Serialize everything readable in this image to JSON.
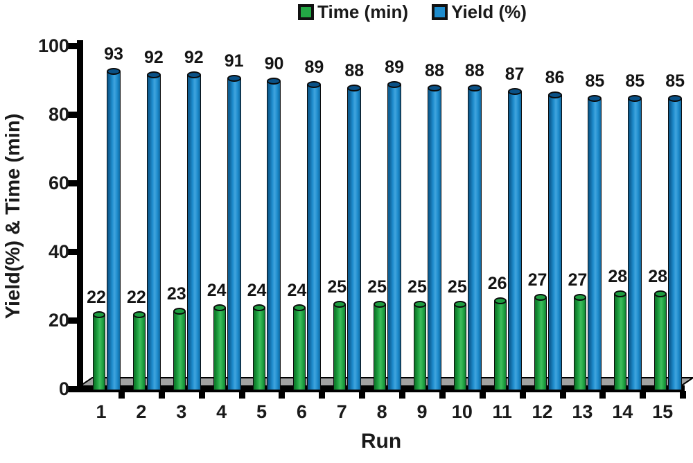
{
  "legend": {
    "items": [
      {
        "label": "Time (min)",
        "color": "#23a845"
      },
      {
        "label": "Yield (%)",
        "color": "#1e8ccd"
      }
    ]
  },
  "chart_data": {
    "type": "bar",
    "subtype": "3d-cylinder",
    "title": "",
    "xlabel": "Run",
    "ylabel": "Yield(%) & Time (min)",
    "categories": [
      "1",
      "2",
      "3",
      "4",
      "5",
      "6",
      "7",
      "8",
      "9",
      "10",
      "11",
      "12",
      "13",
      "14",
      "15"
    ],
    "series": [
      {
        "name": "Time (min)",
        "color": "#23a845",
        "values": [
          22,
          22,
          23,
          24,
          24,
          24,
          25,
          25,
          25,
          25,
          26,
          27,
          27,
          28,
          28
        ]
      },
      {
        "name": "Yield (%)",
        "color": "#1e8ccd",
        "values": [
          93,
          92,
          92,
          91,
          90,
          89,
          88,
          89,
          88,
          88,
          87,
          86,
          85,
          85,
          85
        ]
      }
    ],
    "ylim": [
      0,
      100
    ],
    "yticks": [
      0,
      20,
      40,
      60,
      80,
      100
    ],
    "grid": false,
    "legend_position": "top",
    "data_labels": true,
    "floor_color": "#a2a2a2"
  }
}
